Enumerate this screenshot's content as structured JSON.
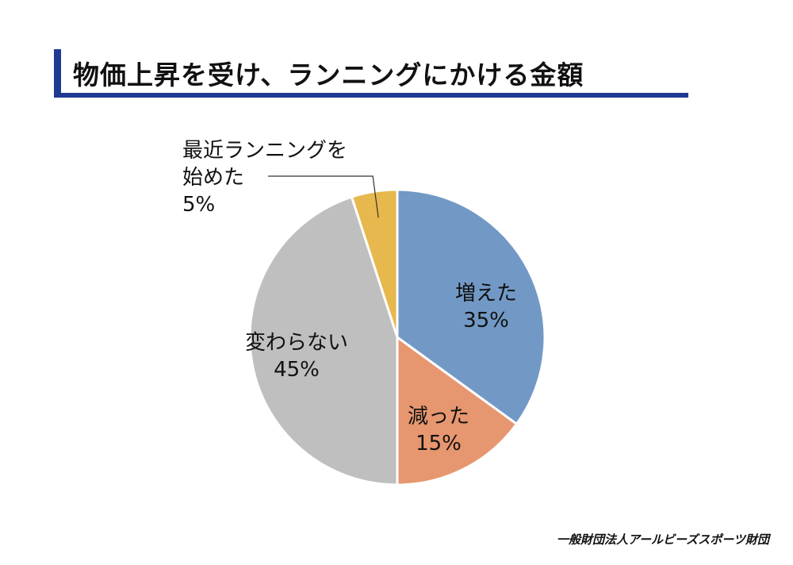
{
  "title": "物価上昇を受け、ランニングにかける金額",
  "footer": "一般財団法人アールビーズスポーツ財団",
  "chart_data": {
    "type": "pie",
    "title": "物価上昇を受け、ランニングにかける金額",
    "start_angle_deg": 0,
    "direction": "clockwise",
    "slices": [
      {
        "label": "増えた",
        "value": 35,
        "value_label": "35%",
        "color": "#7299c6"
      },
      {
        "label": "減った",
        "value": 15,
        "value_label": "15%",
        "color": "#e6976f"
      },
      {
        "label": "変わらない",
        "value": 45,
        "value_label": "45%",
        "color": "#bfbfbf"
      },
      {
        "label": "最近ランニングを始めた",
        "label_lines": [
          "最近ランニングを",
          "始めた"
        ],
        "value": 5,
        "value_label": "5%",
        "color": "#e6b84d",
        "label_position": "outside"
      }
    ]
  }
}
